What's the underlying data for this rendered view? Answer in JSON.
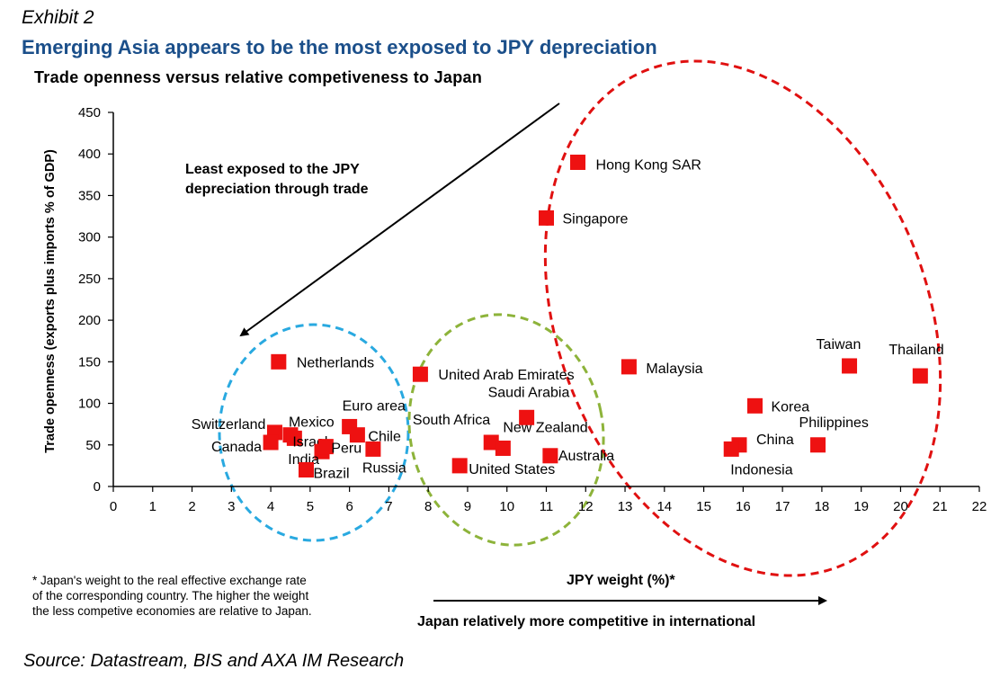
{
  "header": {
    "exhibit": "Exhibit 2",
    "headline": "Emerging Asia appears to be the most exposed to JPY depreciation",
    "subtitle": "Trade openness versus relative competiveness to Japan"
  },
  "footnote": {
    "lines": [
      "* Japan's weight to the real effective exchange rate",
      "of the corresponding country. The higher the weight",
      "the less competive economies are relative to Japan."
    ]
  },
  "source": "Source: Datastream, BIS and AXA IM Research",
  "annotations": {
    "least_exposed": [
      "Least exposed to the JPY",
      "depreciation through trade"
    ],
    "bottom_arrow": "Japan relatively more competitive in international"
  },
  "colors": {
    "headline": "#1b4f8a",
    "marker": "#ee1111",
    "cluster_blue": "#29a9e0",
    "cluster_green": "#8db33a",
    "cluster_red": "#e01010"
  },
  "chart_data": {
    "type": "scatter",
    "xlabel": "JPY weight (%)*",
    "ylabel": "Trade openness (exports plus imports % of GDP)",
    "xlim": [
      0,
      22
    ],
    "ylim": [
      0,
      450
    ],
    "xticks": [
      0,
      1,
      2,
      3,
      4,
      5,
      6,
      7,
      8,
      9,
      10,
      11,
      12,
      13,
      14,
      15,
      16,
      17,
      18,
      19,
      20,
      21,
      22
    ],
    "yticks": [
      0,
      50,
      100,
      150,
      200,
      250,
      300,
      350,
      400,
      450
    ],
    "grid": false,
    "points": [
      {
        "label": "Netherlands",
        "x": 4.2,
        "y": 150
      },
      {
        "label": "Switzerland",
        "x": 4.1,
        "y": 65
      },
      {
        "label": "Canada",
        "x": 4.0,
        "y": 53
      },
      {
        "label": "Mexico",
        "x": 4.5,
        "y": 62
      },
      {
        "label": "Israel",
        "x": 4.6,
        "y": 58
      },
      {
        "label": "India",
        "x": 5.3,
        "y": 42
      },
      {
        "label": "Peru",
        "x": 5.4,
        "y": 48
      },
      {
        "label": "Brazil",
        "x": 4.9,
        "y": 20
      },
      {
        "label": "Euro area",
        "x": 6.0,
        "y": 72
      },
      {
        "label": "Chile",
        "x": 6.2,
        "y": 62
      },
      {
        "label": "Russia",
        "x": 6.6,
        "y": 45
      },
      {
        "label": "United Arab Emirates",
        "x": 7.8,
        "y": 135
      },
      {
        "label": "South Africa",
        "x": 9.6,
        "y": 53
      },
      {
        "label": "New Zealand",
        "x": 9.9,
        "y": 46
      },
      {
        "label": "United States",
        "x": 8.8,
        "y": 25
      },
      {
        "label": "Saudi Arabia",
        "x": 10.5,
        "y": 83
      },
      {
        "label": "Australia",
        "x": 11.1,
        "y": 37
      },
      {
        "label": "Singapore",
        "x": 11.0,
        "y": 323
      },
      {
        "label": "Hong Kong SAR",
        "x": 11.8,
        "y": 390
      },
      {
        "label": "Malaysia",
        "x": 13.1,
        "y": 144
      },
      {
        "label": "Korea",
        "x": 16.3,
        "y": 97
      },
      {
        "label": "China",
        "x": 15.9,
        "y": 50
      },
      {
        "label": "Indonesia",
        "x": 15.7,
        "y": 45
      },
      {
        "label": "Philippines",
        "x": 17.9,
        "y": 50
      },
      {
        "label": "Taiwan",
        "x": 18.7,
        "y": 145
      },
      {
        "label": "Thailand",
        "x": 20.5,
        "y": 133
      }
    ]
  }
}
